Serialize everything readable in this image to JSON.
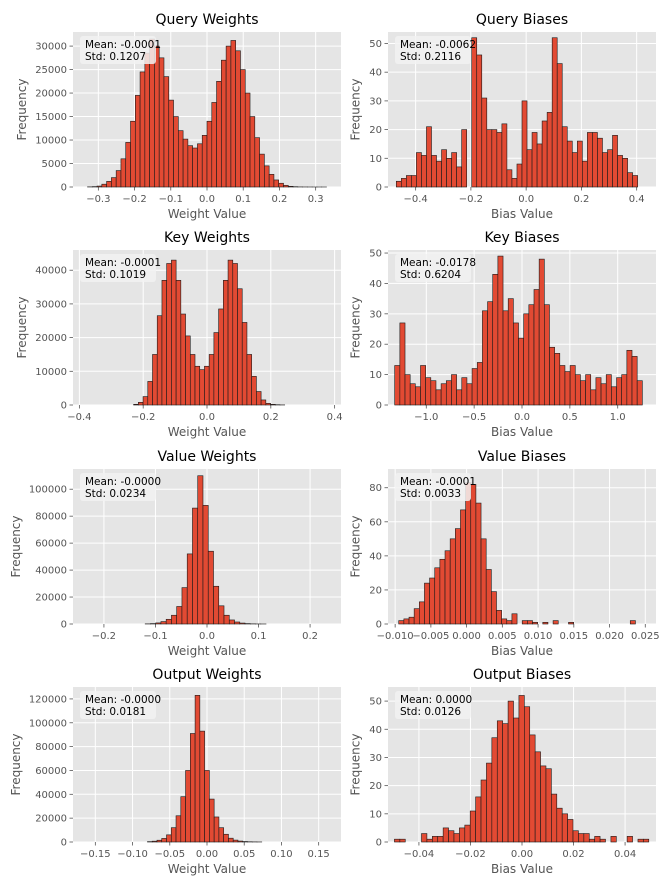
{
  "chart_data": [
    {
      "type": "bar",
      "title": "Query Weights",
      "xlabel": "Weight Value",
      "ylabel": "Frequency",
      "stats": [
        "Mean: -0.0001",
        "Std: 0.1207"
      ],
      "xlim": [
        -0.37,
        0.37
      ],
      "ylim": [
        0,
        33000
      ],
      "xticks": [
        -0.3,
        -0.2,
        -0.1,
        0.0,
        0.1,
        0.2,
        0.3
      ],
      "xtick_labels": [
        "−0.3",
        "−0.2",
        "−0.1",
        "0.0",
        "0.1",
        "0.2",
        "0.3"
      ],
      "yticks": [
        0,
        5000,
        10000,
        15000,
        20000,
        25000,
        30000
      ],
      "ytick_labels": [
        "0",
        "5000",
        "10000",
        "15000",
        "20000",
        "25000",
        "30000"
      ],
      "bin_start": -0.33,
      "bin_width": 0.0132,
      "values": [
        30,
        80,
        200,
        600,
        1200,
        2000,
        3500,
        6000,
        9500,
        14000,
        19500,
        24500,
        28500,
        31500,
        30000,
        27500,
        23500,
        18500,
        15000,
        12000,
        10200,
        8800,
        8300,
        9200,
        11000,
        14000,
        18000,
        22500,
        27000,
        30000,
        31200,
        29000,
        25000,
        20000,
        15000,
        10500,
        7000,
        4500,
        2700,
        1500,
        800,
        350,
        150,
        60,
        20,
        10,
        5,
        2,
        1,
        1
      ]
    },
    {
      "type": "bar",
      "title": "Query Biases",
      "xlabel": "Bias Value",
      "ylabel": "Frequency",
      "stats": [
        "Mean: -0.0062",
        "Std: 0.2116"
      ],
      "xlim": [
        -0.5,
        0.47
      ],
      "ylim": [
        0,
        54
      ],
      "xticks": [
        -0.4,
        -0.2,
        0.0,
        0.2,
        0.4
      ],
      "xtick_labels": [
        "−0.4",
        "−0.2",
        "0.0",
        "0.2",
        "0.4"
      ],
      "yticks": [
        0,
        10,
        20,
        30,
        40,
        50
      ],
      "ytick_labels": [
        "0",
        "10",
        "20",
        "30",
        "40",
        "50"
      ],
      "bin_start": -0.47,
      "bin_width": 0.0182,
      "values": [
        2,
        3,
        4,
        4,
        12,
        11,
        21,
        11,
        9,
        13,
        10,
        12,
        7,
        20,
        0,
        52,
        46,
        31,
        20,
        20,
        19,
        22,
        6,
        3,
        8,
        30,
        13,
        19,
        15,
        23,
        26,
        52,
        43,
        21,
        16,
        12,
        16,
        9,
        19,
        19,
        17,
        12,
        13,
        18,
        11,
        10,
        5,
        4
      ]
    },
    {
      "type": "bar",
      "title": "Key Weights",
      "xlabel": "Weight Value",
      "ylabel": "Frequency",
      "stats": [
        "Mean: -0.0001",
        "Std: 0.1019"
      ],
      "xlim": [
        -0.42,
        0.42
      ],
      "ylim": [
        0,
        46000
      ],
      "xticks": [
        -0.4,
        -0.2,
        0.0,
        0.2,
        0.4
      ],
      "xtick_labels": [
        "−0.4",
        "−0.2",
        "0.0",
        "0.2",
        "0.4"
      ],
      "yticks": [
        0,
        10000,
        20000,
        30000,
        40000
      ],
      "ytick_labels": [
        "0",
        "10000",
        "20000",
        "30000",
        "40000"
      ],
      "bin_start": -0.23,
      "bin_width": 0.0148,
      "values": [
        200,
        800,
        2500,
        7000,
        15000,
        26500,
        37000,
        42000,
        43000,
        37000,
        27000,
        20500,
        15000,
        11500,
        10500,
        11500,
        15000,
        21500,
        28500,
        37000,
        43000,
        42000,
        34500,
        24500,
        15000,
        8500,
        4000,
        1500,
        500,
        200,
        80,
        30
      ]
    },
    {
      "type": "bar",
      "title": "Key Biases",
      "xlabel": "Bias Value",
      "ylabel": "Frequency",
      "stats": [
        "Mean: -0.0178",
        "Std: 0.6204"
      ],
      "xlim": [
        -1.4,
        1.4
      ],
      "ylim": [
        0,
        51
      ],
      "xticks": [
        -1.0,
        -0.5,
        0.0,
        0.5,
        1.0
      ],
      "xtick_labels": [
        "−1.0",
        "−0.5",
        "0.0",
        "0.5",
        "1.0"
      ],
      "yticks": [
        0,
        10,
        20,
        30,
        40,
        50
      ],
      "ytick_labels": [
        "0",
        "10",
        "20",
        "30",
        "40",
        "50"
      ],
      "bin_start": -1.33,
      "bin_width": 0.0539,
      "values": [
        13,
        27,
        10,
        7,
        6,
        13,
        9,
        8,
        5,
        7,
        8,
        10,
        5,
        9,
        7,
        12,
        14,
        31,
        34,
        43,
        49,
        31,
        35,
        27,
        22,
        30,
        33,
        38,
        48,
        33,
        19,
        17,
        13,
        11,
        13,
        10,
        8,
        10,
        5,
        9,
        7,
        10,
        6,
        9,
        10,
        18,
        16,
        8
      ]
    },
    {
      "type": "bar",
      "title": "Value Weights",
      "xlabel": "Weight Value",
      "ylabel": "Frequency",
      "stats": [
        "Mean: -0.0000",
        "Std: 0.0234"
      ],
      "xlim": [
        -0.26,
        0.26
      ],
      "ylim": [
        0,
        115000
      ],
      "xticks": [
        -0.2,
        -0.1,
        0.0,
        0.1,
        0.2
      ],
      "xtick_labels": [
        "−0.2",
        "−0.1",
        "0.0",
        "0.1",
        "0.2"
      ],
      "yticks": [
        0,
        20000,
        40000,
        60000,
        80000,
        100000
      ],
      "ytick_labels": [
        "0",
        "20000",
        "40000",
        "60000",
        "80000",
        "100000"
      ],
      "bin_start": -0.12,
      "bin_width": 0.0102,
      "values": [
        100,
        300,
        800,
        1800,
        3500,
        6500,
        13000,
        27000,
        52000,
        86000,
        110000,
        88000,
        54000,
        28000,
        13500,
        6500,
        3000,
        1500,
        700,
        300,
        120,
        50,
        20
      ]
    },
    {
      "type": "bar",
      "title": "Value Biases",
      "xlabel": "Bias Value",
      "ylabel": "Frequency",
      "stats": [
        "Mean: -0.0001",
        "Std: 0.0033"
      ],
      "xlim": [
        -0.011,
        0.0265
      ],
      "ylim": [
        0,
        91
      ],
      "xticks": [
        -0.01,
        -0.005,
        0.0,
        0.005,
        0.01,
        0.015,
        0.02,
        0.025
      ],
      "xtick_labels": [
        "−0.010",
        "−0.005",
        "0.000",
        "0.005",
        "0.010",
        "0.015",
        "0.020",
        "0.025"
      ],
      "yticks": [
        0,
        20,
        40,
        60,
        80
      ],
      "ytick_labels": [
        "0",
        "20",
        "40",
        "60",
        "80"
      ],
      "bin_start": -0.0095,
      "bin_width": 0.00072,
      "values": [
        2,
        3,
        4,
        9,
        13,
        24,
        27,
        33,
        38,
        43,
        50,
        56,
        67,
        83,
        82,
        71,
        50,
        32,
        19,
        8,
        3,
        2,
        6,
        0,
        2,
        2,
        1,
        0,
        1,
        0,
        2,
        0,
        0,
        1,
        0,
        0,
        0,
        0,
        0,
        0,
        0,
        0,
        0,
        0,
        0,
        2
      ]
    },
    {
      "type": "bar",
      "title": "Output Weights",
      "xlabel": "Weight Value",
      "ylabel": "Frequency",
      "stats": [
        "Mean: -0.0000",
        "Std: 0.0181"
      ],
      "xlim": [
        -0.18,
        0.18
      ],
      "ylim": [
        0,
        130000
      ],
      "xticks": [
        -0.15,
        -0.1,
        -0.05,
        0.0,
        0.05,
        0.1,
        0.15
      ],
      "xtick_labels": [
        "−0.15",
        "−0.10",
        "−0.05",
        "0.00",
        "0.05",
        "0.10",
        "0.15"
      ],
      "yticks": [
        0,
        20000,
        40000,
        60000,
        80000,
        100000,
        120000
      ],
      "ytick_labels": [
        "0",
        "20000",
        "40000",
        "60000",
        "80000",
        "100000",
        "120000"
      ],
      "bin_start": -0.08,
      "bin_width": 0.0064,
      "values": [
        300,
        700,
        1500,
        3000,
        6000,
        12000,
        22000,
        38000,
        60000,
        91000,
        123000,
        93000,
        60000,
        36000,
        21000,
        12000,
        6500,
        3200,
        1600,
        800,
        400,
        200,
        100,
        50
      ]
    },
    {
      "type": "bar",
      "title": "Output Biases",
      "xlabel": "Bias Value",
      "ylabel": "Frequency",
      "stats": [
        "Mean: 0.0000",
        "Std: 0.0126"
      ],
      "xlim": [
        -0.052,
        0.052
      ],
      "ylim": [
        0,
        55
      ],
      "xticks": [
        -0.04,
        -0.02,
        0.0,
        0.02,
        0.04
      ],
      "xtick_labels": [
        "−0.04",
        "−0.02",
        "0.00",
        "0.02",
        "0.04"
      ],
      "yticks": [
        0,
        10,
        20,
        30,
        40,
        50
      ],
      "ytick_labels": [
        "0",
        "10",
        "20",
        "30",
        "40",
        "50"
      ],
      "bin_start": -0.0495,
      "bin_width": 0.0021,
      "values": [
        1,
        1,
        0,
        0,
        0,
        3,
        1,
        2,
        2,
        5,
        4,
        3,
        5,
        6,
        11,
        16,
        22,
        28,
        37,
        43,
        42,
        50,
        44,
        52,
        48,
        38,
        32,
        27,
        26,
        17,
        12,
        10,
        8,
        4,
        3,
        3,
        1,
        2,
        1,
        0,
        2,
        0,
        0,
        2,
        0,
        1,
        1
      ]
    }
  ]
}
